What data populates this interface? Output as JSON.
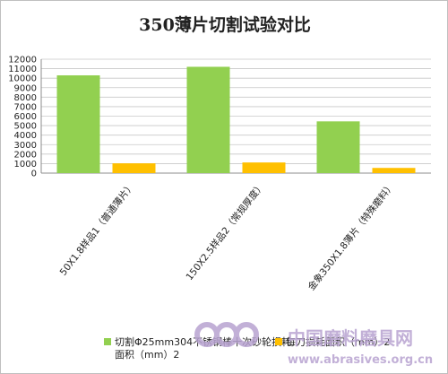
{
  "chart_data": {
    "type": "bar",
    "title": "350薄片切割试验对比",
    "categories": [
      "50X1.8样品1（普通薄片）",
      "150X2.5样品2（常规厚度）",
      "金象350X1.8薄片（特殊磨料）"
    ],
    "series": [
      {
        "name": "切割Φ25mm304不锈钢棒十次砂轮损耗面积（mm）2",
        "color": "#92d050",
        "values": [
          10300,
          11200,
          5450
        ]
      },
      {
        "name": "每刀损耗面积（mm）2",
        "color": "#ffc000",
        "values": [
          1030,
          1120,
          545
        ]
      }
    ],
    "ylim": [
      0,
      12000
    ],
    "yticks": [
      0,
      1000,
      2000,
      3000,
      4000,
      5000,
      6000,
      7000,
      8000,
      9000,
      10000,
      11000,
      12000
    ],
    "grid": true,
    "legend_position": "bottom"
  },
  "watermark": {
    "text": "中国磨料磨具网",
    "url": "www.abrasives.org.cn",
    "color": "#b8a3d1"
  }
}
